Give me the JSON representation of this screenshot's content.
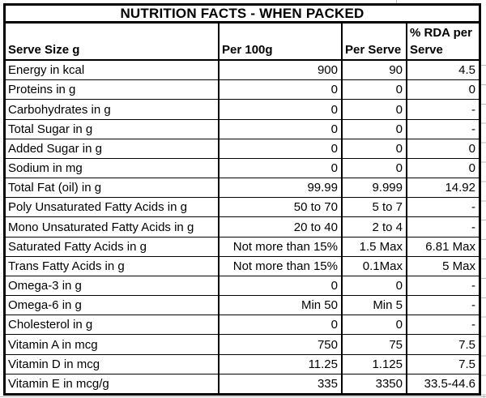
{
  "table": {
    "title": "NUTRITION FACTS - WHEN PACKED",
    "columns": [
      "Serve Size g",
      "Per 100g",
      "Per Serve",
      "% RDA per Serve"
    ],
    "rows": [
      {
        "label": "Energy in kcal",
        "p100": "900",
        "serve": "90",
        "rda": "4.5"
      },
      {
        "label": "Proteins in g",
        "p100": "0",
        "serve": "0",
        "rda": "0"
      },
      {
        "label": "Carbohydrates in g",
        "p100": "0",
        "serve": "0",
        "rda": "-"
      },
      {
        "label": "Total Sugar in g",
        "p100": "0",
        "serve": "0",
        "rda": "-"
      },
      {
        "label": "Added Sugar in g",
        "p100": "0",
        "serve": "0",
        "rda": "0"
      },
      {
        "label": "Sodium in mg",
        "p100": "0",
        "serve": "0",
        "rda": "0"
      },
      {
        "label": "Total Fat (oil) in g",
        "p100": "99.99",
        "serve": "9.999",
        "rda": "14.92"
      },
      {
        "label": "Poly Unsaturated Fatty Acids in g",
        "p100": "50 to 70",
        "serve": "5 to 7",
        "rda": "-"
      },
      {
        "label": "Mono Unsaturated Fatty Acids in g",
        "p100": "20 to 40",
        "serve": "2 to 4",
        "rda": "-"
      },
      {
        "label": "Saturated Fatty Acids in g",
        "p100": "Not more than 15%",
        "serve": "1.5 Max",
        "rda": "6.81 Max"
      },
      {
        "label": "Trans Fatty Acids in g",
        "p100": "Not more than 15%",
        "serve": "0.1Max",
        "rda": "5 Max"
      },
      {
        "label": "Omega-3 in g",
        "p100": "0",
        "serve": "0",
        "rda": "-"
      },
      {
        "label": "Omega-6 in g",
        "p100": "Min 50",
        "serve": "Min 5",
        "rda": "-"
      },
      {
        "label": "Cholesterol in g",
        "p100": "0",
        "serve": "0",
        "rda": "-"
      },
      {
        "label": "Vitamin A in mcg",
        "p100": "750",
        "serve": "75",
        "rda": "7.5"
      },
      {
        "label": "Vitamin D in mcg",
        "p100": "11.25",
        "serve": "1.125",
        "rda": "7.5"
      },
      {
        "label": "Vitamin E in mcg/g",
        "p100": "335",
        "serve": "3350",
        "rda": "33.5-44.6"
      }
    ]
  },
  "chart_data": {
    "type": "table",
    "title": "NUTRITION FACTS - WHEN PACKED",
    "columns": [
      "Serve Size g",
      "Per 100g",
      "Per Serve",
      "% RDA per Serve"
    ],
    "rows": [
      [
        "Energy in kcal",
        "900",
        "90",
        "4.5"
      ],
      [
        "Proteins in g",
        "0",
        "0",
        "0"
      ],
      [
        "Carbohydrates in g",
        "0",
        "0",
        "-"
      ],
      [
        "Total Sugar in g",
        "0",
        "0",
        "-"
      ],
      [
        "Added Sugar in g",
        "0",
        "0",
        "0"
      ],
      [
        "Sodium in mg",
        "0",
        "0",
        "0"
      ],
      [
        "Total Fat (oil) in g",
        "99.99",
        "9.999",
        "14.92"
      ],
      [
        "Poly Unsaturated Fatty Acids in g",
        "50 to 70",
        "5 to 7",
        "-"
      ],
      [
        "Mono Unsaturated Fatty Acids in g",
        "20 to 40",
        "2 to 4",
        "-"
      ],
      [
        "Saturated Fatty Acids in g",
        "Not more than 15%",
        "1.5 Max",
        "6.81 Max"
      ],
      [
        "Trans Fatty Acids in g",
        "Not more than 15%",
        "0.1Max",
        "5 Max"
      ],
      [
        "Omega-3 in g",
        "0",
        "0",
        "-"
      ],
      [
        "Omega-6 in g",
        "Min 50",
        "Min 5",
        "-"
      ],
      [
        "Cholesterol in g",
        "0",
        "0",
        "-"
      ],
      [
        "Vitamin A in mcg",
        "750",
        "75",
        "7.5"
      ],
      [
        "Vitamin D in mcg",
        "11.25",
        "1.125",
        "7.5"
      ],
      [
        "Vitamin E in mcg/g",
        "335",
        "3350",
        "33.5-44.6"
      ]
    ]
  },
  "colors": {
    "border": "#000000",
    "text": "#000000",
    "background": "#ffffff",
    "gridline_remnant": "#b9b9b9"
  }
}
